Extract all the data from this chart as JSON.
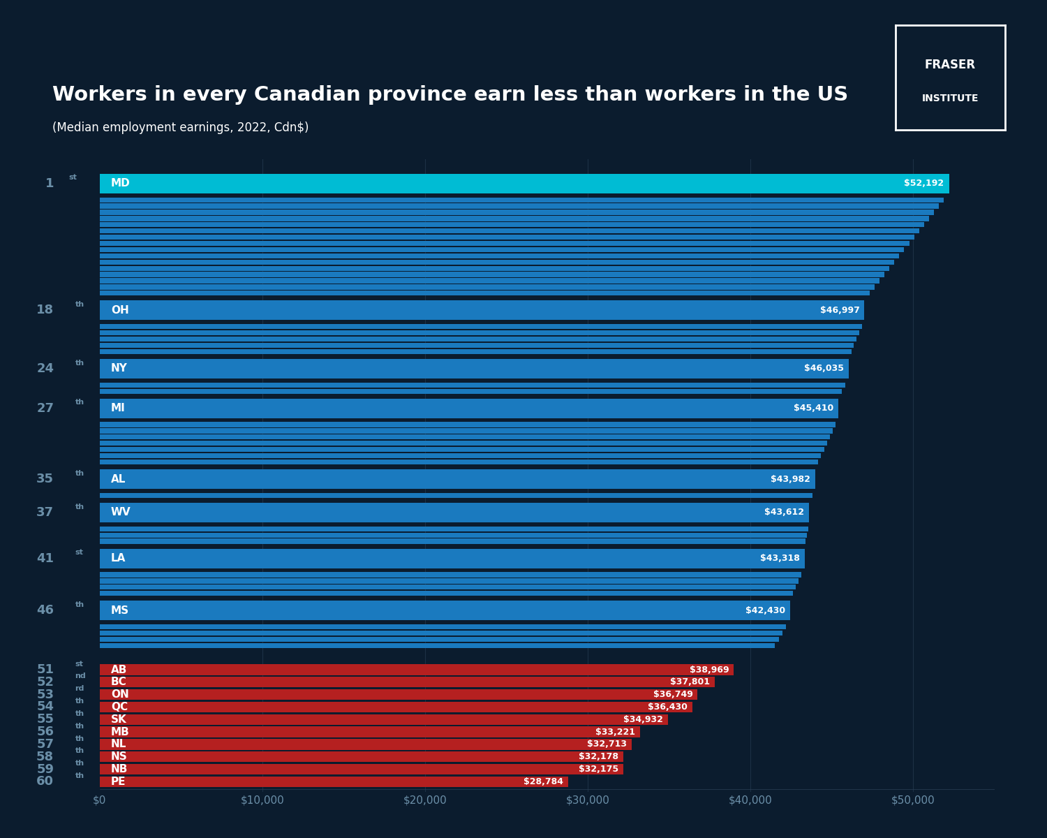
{
  "title": "Workers in every Canadian province earn less than workers in the US",
  "subtitle": "(Median employment earnings, 2022, Cdn$)",
  "background_color": "#0b1c2e",
  "bar_color_us": "#1a7abf",
  "bar_color_canada": "#b52020",
  "bar_color_highlight": "#00bcd4",
  "xlim": [
    0,
    55000
  ],
  "xticks": [
    0,
    10000,
    20000,
    30000,
    40000,
    50000
  ],
  "xtick_labels": [
    "$0",
    "$10,000",
    "$20,000",
    "$30,000",
    "$40,000",
    "$50,000"
  ],
  "labeled_us_bars": [
    {
      "rank": 1,
      "rank_num": "1",
      "rank_sup": "st",
      "label": "MD",
      "value": 52192
    },
    {
      "rank": 18,
      "rank_num": "18",
      "rank_sup": "th",
      "label": "OH",
      "value": 46997
    },
    {
      "rank": 24,
      "rank_num": "24",
      "rank_sup": "th",
      "label": "NY",
      "value": 46035
    },
    {
      "rank": 27,
      "rank_num": "27",
      "rank_sup": "th",
      "label": "MI",
      "value": 45410
    },
    {
      "rank": 35,
      "rank_num": "35",
      "rank_sup": "th",
      "label": "AL",
      "value": 43982
    },
    {
      "rank": 37,
      "rank_num": "37",
      "rank_sup": "th",
      "label": "WV",
      "value": 43612
    },
    {
      "rank": 41,
      "rank_num": "41",
      "rank_sup": "st",
      "label": "LA",
      "value": 43318
    },
    {
      "rank": 46,
      "rank_num": "46",
      "rank_sup": "th",
      "label": "MS",
      "value": 42430
    }
  ],
  "canada_bars": [
    {
      "rank": 51,
      "rank_num": "51",
      "rank_sup": "st",
      "label": "AB",
      "value": 38969
    },
    {
      "rank": 52,
      "rank_num": "52",
      "rank_sup": "nd",
      "label": "BC",
      "value": 37801
    },
    {
      "rank": 53,
      "rank_num": "53",
      "rank_sup": "rd",
      "label": "ON",
      "value": 36749
    },
    {
      "rank": 54,
      "rank_num": "54",
      "rank_sup": "th",
      "label": "QC",
      "value": 36430
    },
    {
      "rank": 55,
      "rank_num": "55",
      "rank_sup": "th",
      "label": "SK",
      "value": 34932
    },
    {
      "rank": 56,
      "rank_num": "56",
      "rank_sup": "th",
      "label": "MB",
      "value": 33221
    },
    {
      "rank": 57,
      "rank_num": "57",
      "rank_sup": "th",
      "label": "NL",
      "value": 32713
    },
    {
      "rank": 58,
      "rank_num": "58",
      "rank_sup": "th",
      "label": "NS",
      "value": 32178
    },
    {
      "rank": 59,
      "rank_num": "59",
      "rank_sup": "th",
      "label": "NB",
      "value": 32175
    },
    {
      "rank": 60,
      "rank_num": "60",
      "rank_sup": "th",
      "label": "PE",
      "value": 28784
    }
  ],
  "text_color_white": "#ffffff",
  "text_color_gray": "#6b8fa8",
  "value_label_color_us": "#ffffff",
  "value_label_color_canada": "#ffffff"
}
